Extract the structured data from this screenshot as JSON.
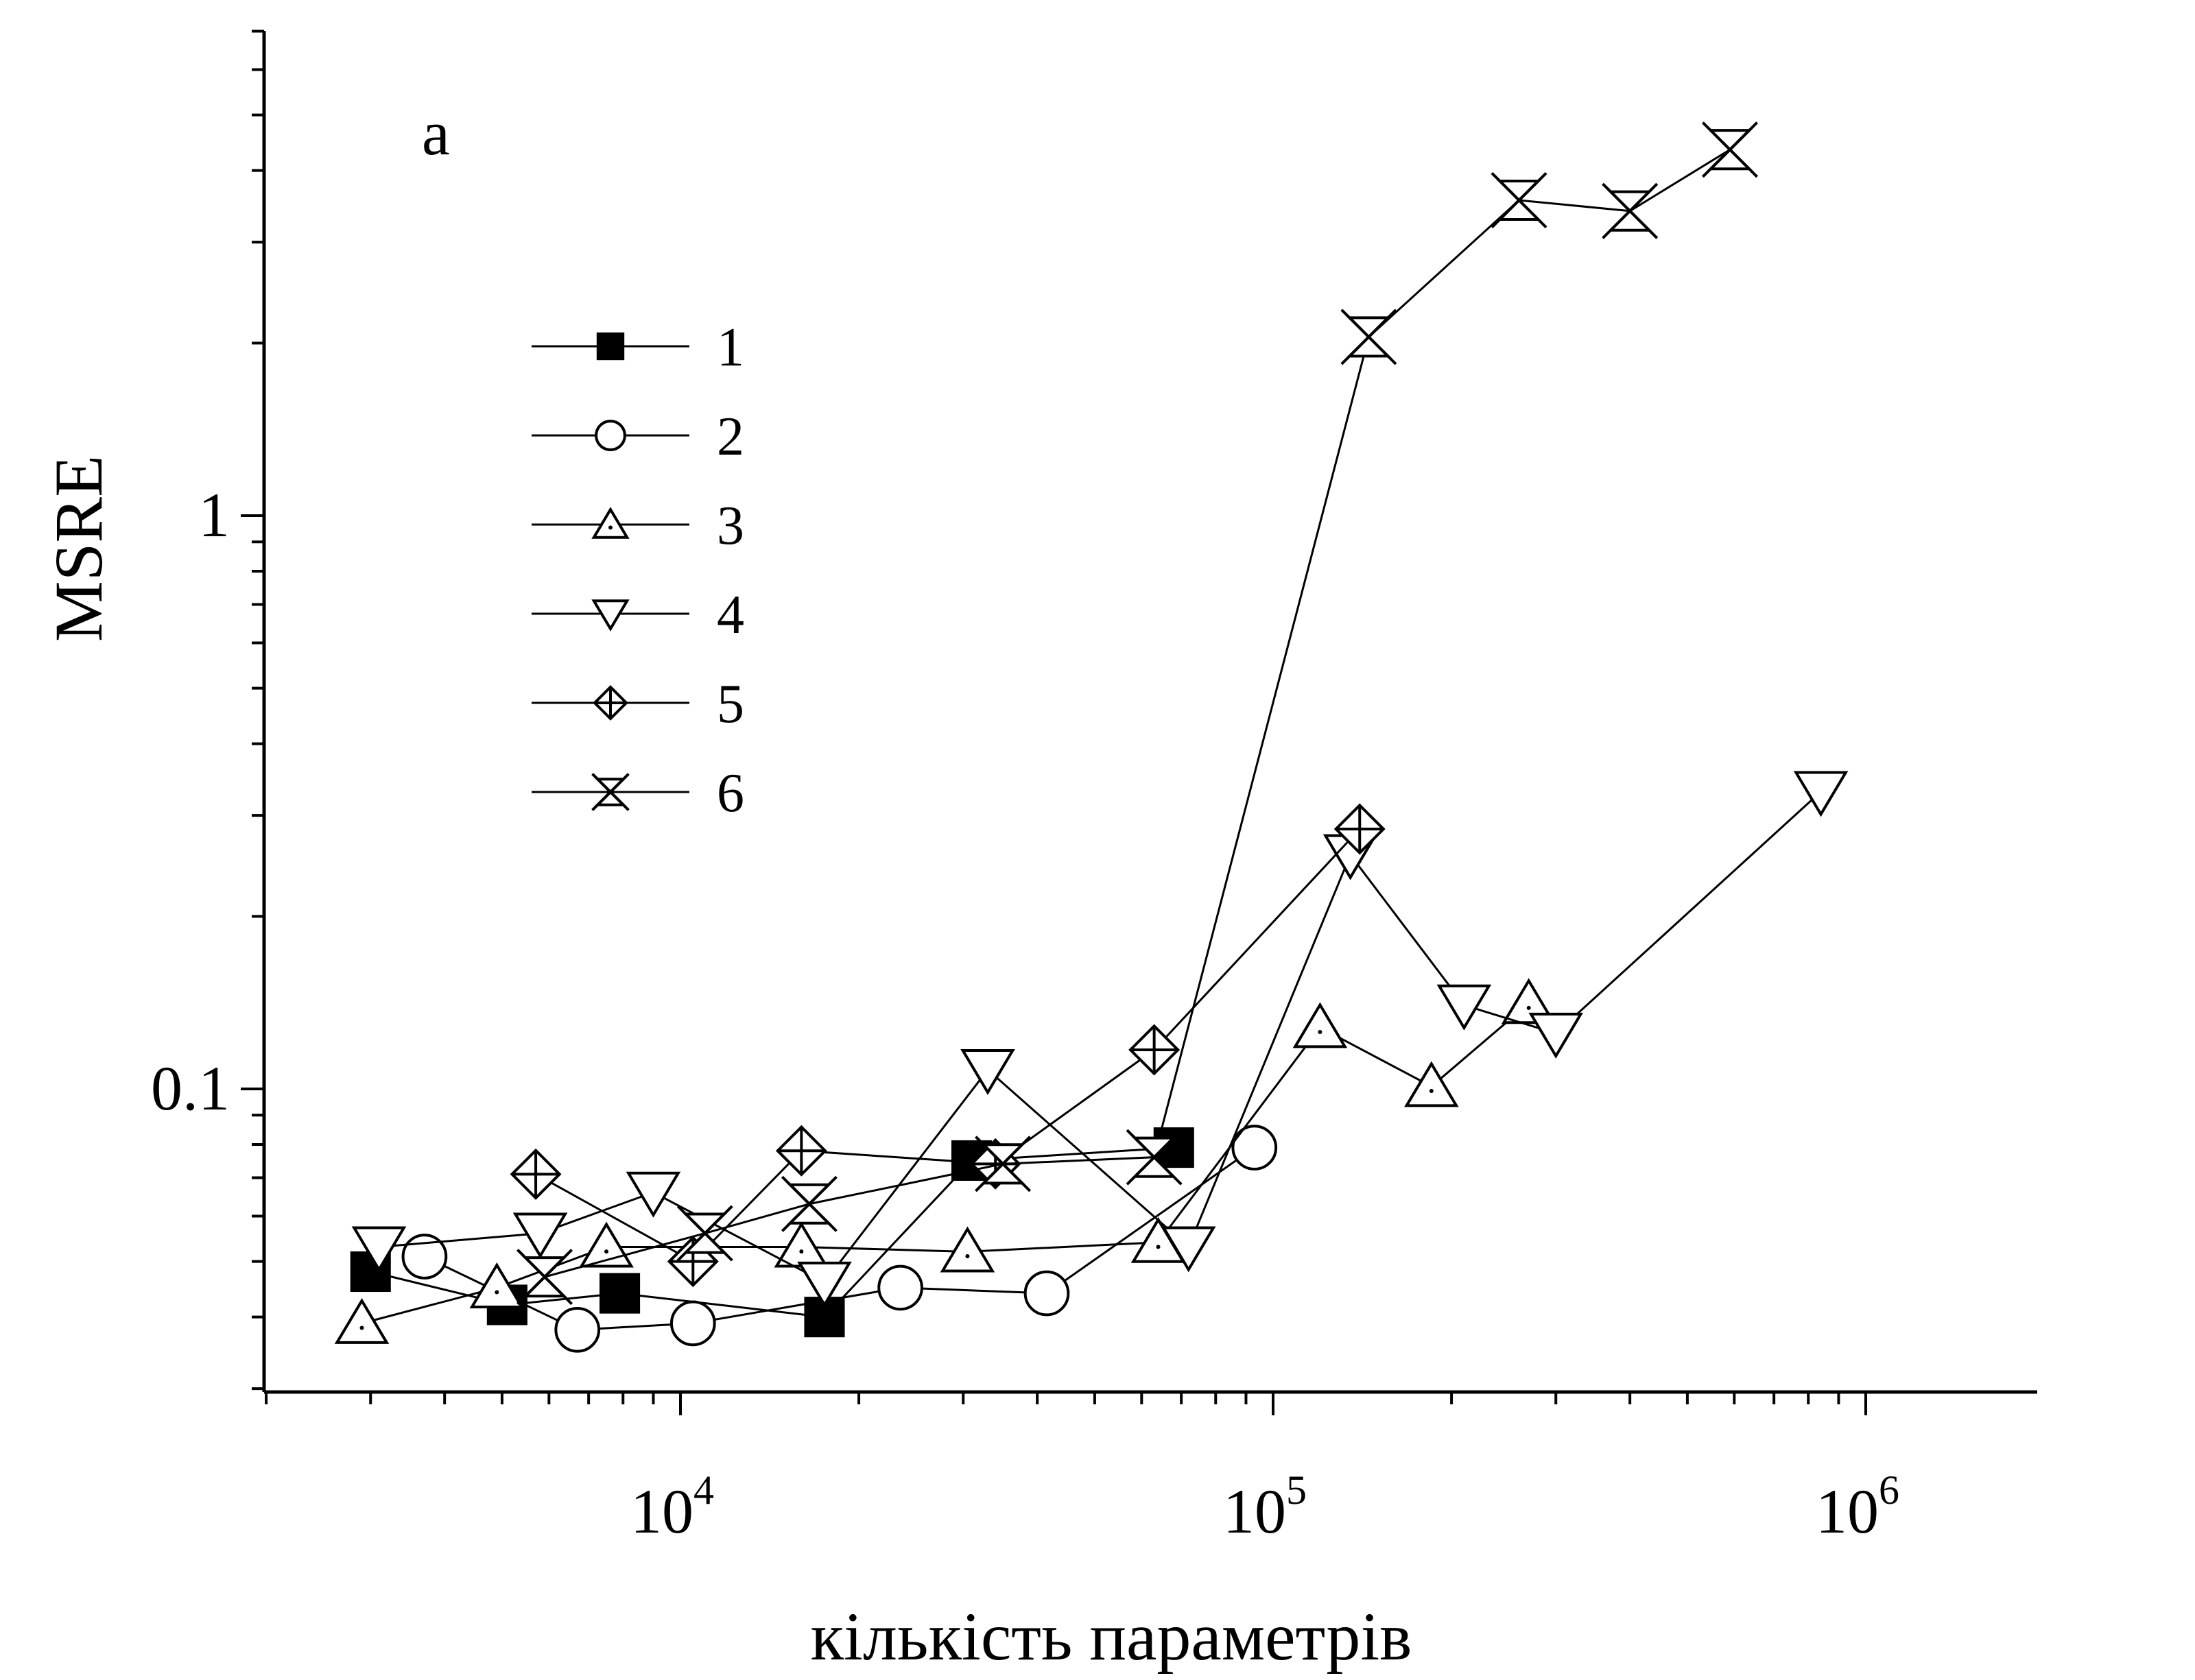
{
  "chart_data": {
    "type": "scatter",
    "panel_label": "a",
    "title": "",
    "xlabel": "кількість параметрів",
    "ylabel": "MSRE",
    "x_scale": "log",
    "y_scale": "log",
    "xlim": [
      1000,
      2000000
    ],
    "ylim": [
      0.03,
      10
    ],
    "x_ticks": [
      {
        "value": 10000,
        "base": "10",
        "exp": "4"
      },
      {
        "value": 100000,
        "base": "10",
        "exp": "5"
      },
      {
        "value": 1000000,
        "base": "10",
        "exp": "6"
      }
    ],
    "y_ticks": [
      {
        "value": 0.1,
        "label": "0.1"
      },
      {
        "value": 1,
        "label": "1"
      }
    ],
    "legend_position": "upper-left",
    "series": [
      {
        "name": "1",
        "marker": "filled-square",
        "x": [
          3000,
          5100,
          7900,
          17500,
          31000,
          68000
        ],
        "y": [
          0.048,
          0.042,
          0.044,
          0.04,
          0.075,
          0.079
        ]
      },
      {
        "name": "2",
        "marker": "open-circle",
        "x": [
          3700,
          6700,
          10500,
          23500,
          41500,
          93000
        ],
        "y": [
          0.051,
          0.038,
          0.039,
          0.045,
          0.044,
          0.079
        ]
      },
      {
        "name": "3",
        "marker": "open-triangle-up",
        "x": [
          2900,
          4900,
          7500,
          16000,
          30500,
          64000,
          120000,
          185000,
          270000
        ],
        "y": [
          0.039,
          0.045,
          0.053,
          0.053,
          0.052,
          0.054,
          0.128,
          0.101,
          0.141
        ]
      },
      {
        "name": "4",
        "marker": "open-triangle-down",
        "x": [
          3100,
          5800,
          9000,
          17500,
          33000,
          72000,
          135000,
          210000,
          300000,
          840000
        ],
        "y": [
          0.053,
          0.056,
          0.066,
          0.046,
          0.108,
          0.053,
          0.256,
          0.14,
          0.125,
          0.33
        ]
      },
      {
        "name": "5",
        "marker": "open-diamond-plus",
        "x": [
          5700,
          10500,
          16000,
          34000,
          63000,
          140000
        ],
        "y": [
          0.071,
          0.05,
          0.078,
          0.074,
          0.117,
          0.284
        ]
      },
      {
        "name": "6",
        "marker": "open-hourglass-x",
        "x": [
          5900,
          11000,
          16500,
          35000,
          63000,
          145000,
          260000,
          400000,
          590000
        ],
        "y": [
          0.047,
          0.056,
          0.063,
          0.074,
          0.076,
          2.05,
          3.55,
          3.4,
          4.35
        ]
      }
    ]
  }
}
